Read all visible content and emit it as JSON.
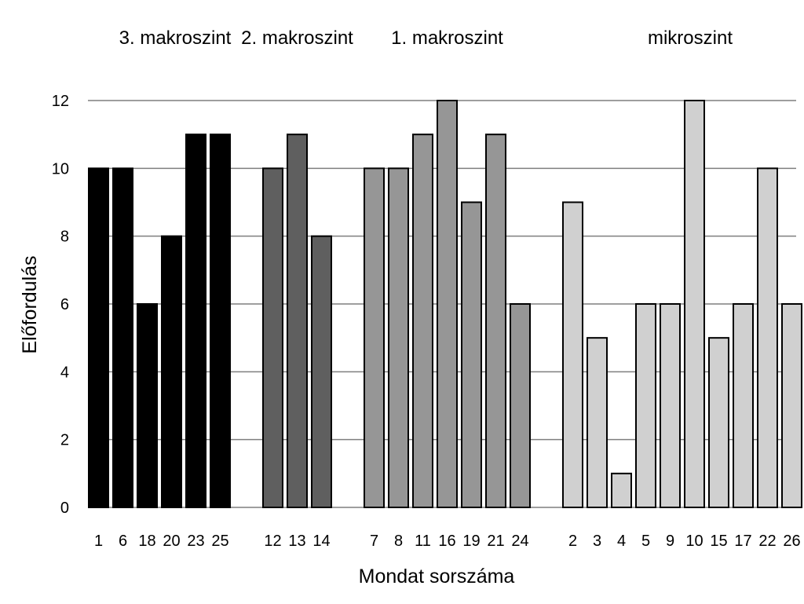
{
  "chart_data": {
    "type": "bar",
    "title": "",
    "xlabel": "Mondat sorszáma",
    "ylabel": "Előfordulás",
    "ylim": [
      0,
      12
    ],
    "yticks": [
      0,
      2,
      4,
      6,
      8,
      10,
      12
    ],
    "grid": true,
    "legend": "none",
    "groups": [
      {
        "name": "3. makroszint",
        "color": "#000000",
        "categories": [
          "1",
          "6",
          "18",
          "20",
          "23",
          "25"
        ],
        "values": [
          10,
          10,
          6,
          8,
          11,
          11
        ]
      },
      {
        "name": "2. makroszint",
        "color": "#5f5f5f",
        "categories": [
          "12",
          "13",
          "14"
        ],
        "values": [
          10,
          11,
          8
        ]
      },
      {
        "name": "1. makroszint",
        "color": "#969696",
        "categories": [
          "7",
          "8",
          "11",
          "16",
          "19",
          "21",
          "24"
        ],
        "values": [
          10,
          10,
          11,
          12,
          9,
          11,
          6
        ]
      },
      {
        "name": "mikroszint",
        "color": "#d0d0d0",
        "categories": [
          "2",
          "3",
          "4",
          "5",
          "9",
          "10",
          "15",
          "17",
          "22",
          "26"
        ],
        "values": [
          9,
          5,
          1,
          6,
          6,
          12,
          5,
          6,
          10,
          6
        ]
      }
    ]
  }
}
